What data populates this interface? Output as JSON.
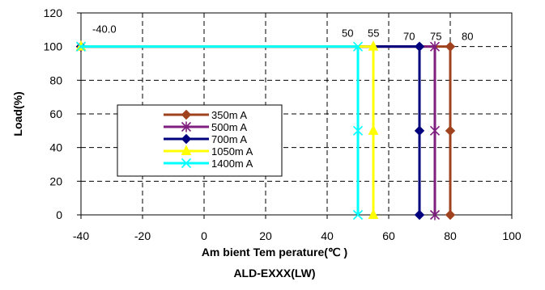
{
  "chart_data": {
    "type": "line",
    "xlabel": "Am bient Tem perature(℃ )",
    "ylabel": "Load(%)",
    "caption": "ALD-EXXX(LW)",
    "xlim": [
      -40,
      100
    ],
    "ylim": [
      0,
      120
    ],
    "x_ticks": [
      -40,
      -20,
      0,
      20,
      40,
      60,
      80,
      100
    ],
    "y_ticks": [
      0,
      20,
      40,
      60,
      80,
      100,
      120
    ],
    "grid": true,
    "legend_position": "center-left",
    "series": [
      {
        "name": "350m A",
        "color": "#A0421E",
        "marker": "diamond",
        "points": [
          [
            -40,
            100
          ],
          [
            80,
            100
          ],
          [
            80,
            50
          ],
          [
            80,
            0
          ]
        ]
      },
      {
        "name": "500m A",
        "color": "#7F1F7F",
        "marker": "star",
        "points": [
          [
            -40,
            100
          ],
          [
            75,
            100
          ],
          [
            75,
            50
          ],
          [
            75,
            0
          ]
        ]
      },
      {
        "name": "700m A",
        "color": "#00007F",
        "marker": "diamond",
        "points": [
          [
            -40,
            100
          ],
          [
            70,
            100
          ],
          [
            70,
            50
          ],
          [
            70,
            0
          ]
        ]
      },
      {
        "name": "1050m A",
        "color": "#FFFF00",
        "marker": "triangle",
        "points": [
          [
            -40,
            100
          ],
          [
            55,
            100
          ],
          [
            55,
            50
          ],
          [
            55,
            0
          ]
        ]
      },
      {
        "name": "1400m A",
        "color": "#00FFFF",
        "marker": "x",
        "points": [
          [
            -40,
            100
          ],
          [
            50,
            100
          ],
          [
            50,
            50
          ],
          [
            50,
            0
          ]
        ]
      }
    ],
    "annotations": [
      {
        "text": "-40.0",
        "x": -40,
        "y": 100
      },
      {
        "text": "50",
        "x": 50,
        "y": 100
      },
      {
        "text": "55",
        "x": 55,
        "y": 100
      },
      {
        "text": "70",
        "x": 70,
        "y": 100
      },
      {
        "text": "75",
        "x": 75,
        "y": 100
      },
      {
        "text": "80",
        "x": 80,
        "y": 100
      }
    ]
  }
}
